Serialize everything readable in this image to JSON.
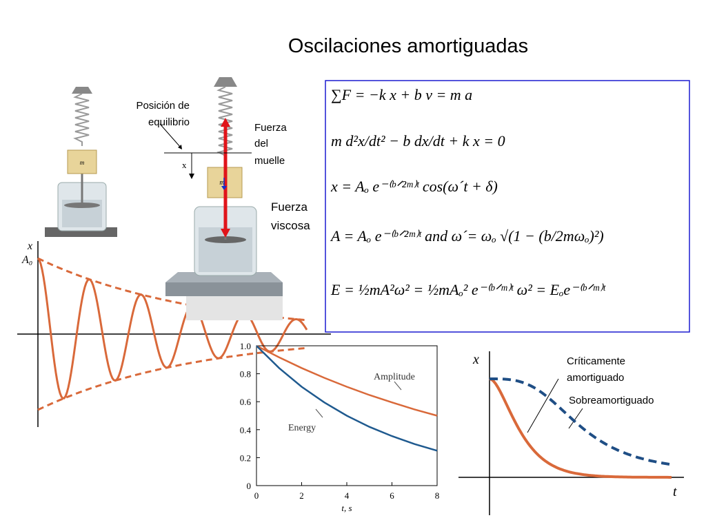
{
  "title": "Oscilaciones amortiguadas",
  "apparatus": {
    "mass_label": "m",
    "equilibrium_label": [
      "Posición de",
      "equilibrio"
    ],
    "x_label": "x",
    "spring_force_label": [
      "Fuerza",
      "del",
      "muelle"
    ],
    "viscous_force_label": [
      "Fuerza",
      "viscosa"
    ]
  },
  "equations": [
    "∑F = −k x + b v = m a",
    "m d²x/dt² − b dx/dt + k x = 0",
    "x = Aₒ e⁻⁽ᵇᐟ²ᵐ⁾ᵗ cos(ω´t + δ)",
    "A = Aₒ e⁻⁽ᵇᐟ²ᵐ⁾ᵗ    and   ω´= ωₒ √(1 − (b/2mωₒ)²)",
    "E = ½mA²ω² = ½mAₒ² e⁻⁽ᵇᐟᵐ⁾ᵗ ω² = Eₒe⁻⁽ᵇᐟᵐ⁾ᵗ"
  ],
  "oscillation_plot": {
    "y_label": "x",
    "amplitude_label": "A₀"
  },
  "damping_plot": {
    "y_label": "x",
    "x_label": "t",
    "critical_label": [
      "Críticamente",
      "amortiguado"
    ],
    "over_label": "Sobreamortiguado"
  },
  "chart_data": {
    "type": "line",
    "x_label": "t, s",
    "x": [
      0,
      1,
      2,
      3,
      4,
      5,
      6,
      7,
      8
    ],
    "series": [
      {
        "name": "Amplitude",
        "color": "#d9693a",
        "values": [
          1,
          0.917,
          0.841,
          0.771,
          0.707,
          0.648,
          0.595,
          0.545,
          0.5
        ]
      },
      {
        "name": "Energy",
        "color": "#1f5a8f",
        "values": [
          1,
          0.841,
          0.707,
          0.595,
          0.5,
          0.42,
          0.354,
          0.297,
          0.25
        ]
      }
    ],
    "xlim": [
      0,
      8
    ],
    "ylim": [
      0,
      1
    ],
    "xticks": [
      0,
      2,
      4,
      6,
      8
    ],
    "yticks": [
      0,
      0.2,
      0.4,
      0.6,
      0.8,
      {
        "value": 1,
        "label": "1.0"
      }
    ]
  }
}
